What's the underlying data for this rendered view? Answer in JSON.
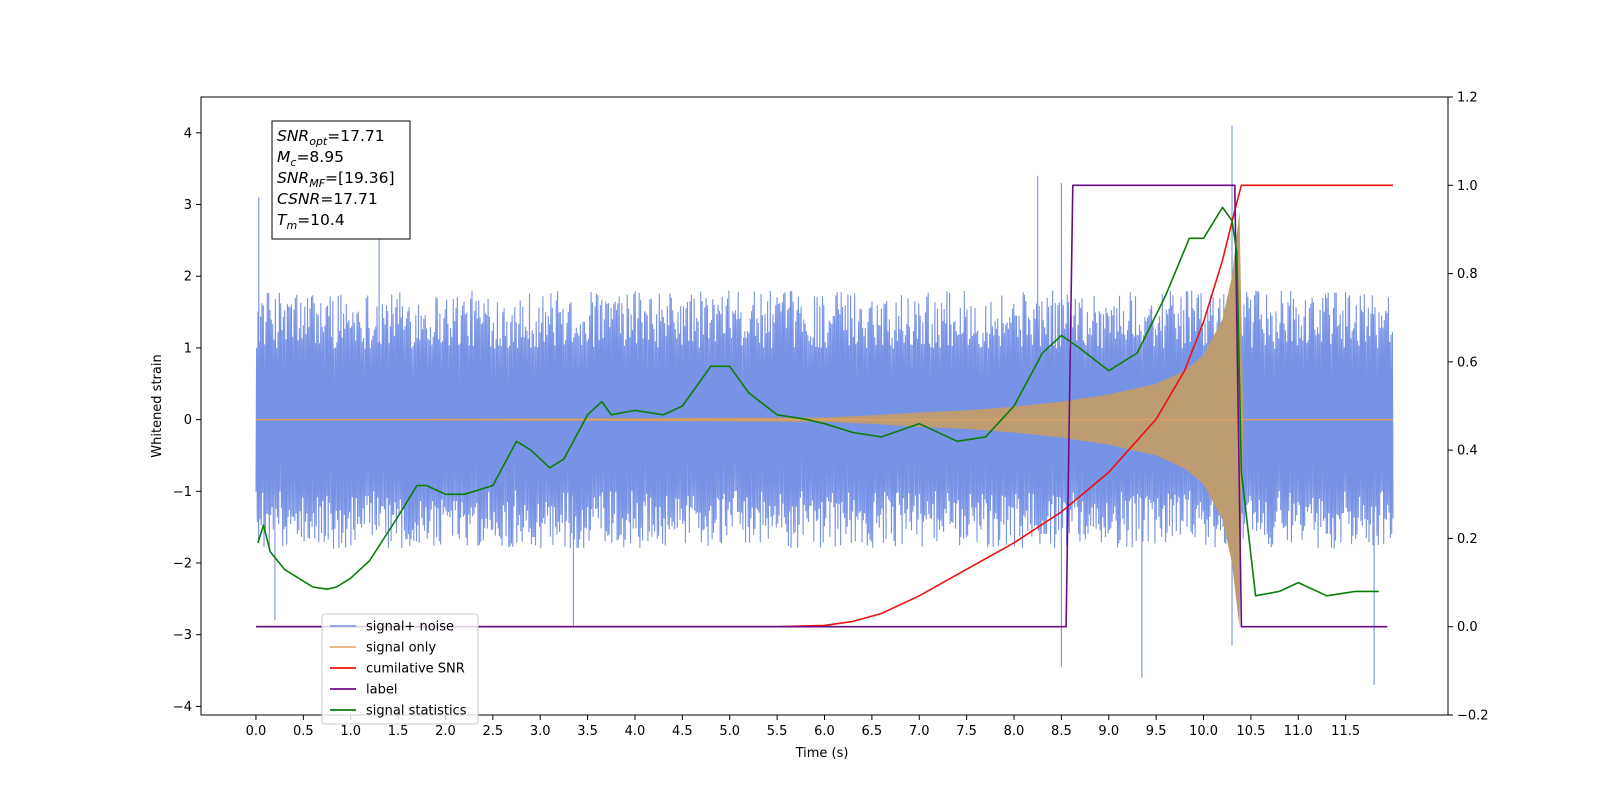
{
  "chart_data": {
    "type": "line",
    "xlabel": "Time (s)",
    "ylabel_left": "Whitened strain",
    "ylabel_right": "",
    "xlim": [
      -0.58,
      12.58
    ],
    "ylim_left": [
      -4.12,
      4.5
    ],
    "ylim_right": [
      -0.2,
      1.2
    ],
    "x_ticks": [
      "0.0",
      "0.5",
      "1.0",
      "1.5",
      "2.0",
      "2.5",
      "3.0",
      "3.5",
      "4.0",
      "4.5",
      "5.0",
      "5.5",
      "6.0",
      "6.5",
      "7.0",
      "7.5",
      "8.0",
      "8.5",
      "9.0",
      "9.5",
      "10.0",
      "10.5",
      "11.0",
      "11.5"
    ],
    "y_ticks_left": [
      "−4",
      "−3",
      "−2",
      "−1",
      "0",
      "1",
      "2",
      "3",
      "4"
    ],
    "y_ticks_right": [
      "−0.2",
      "0.0",
      "0.2",
      "0.4",
      "0.6",
      "0.8",
      "1.0",
      "1.2"
    ],
    "grid": false,
    "legend_position": "lower-left",
    "annotation": {
      "lines": [
        {
          "main": "SNR",
          "sub": "opt",
          "value": "=17.71"
        },
        {
          "main": "M",
          "sub": "c",
          "value": "=8.95"
        },
        {
          "main": "SNR",
          "sub": "MF",
          "value": "=[19.36]"
        },
        {
          "main": "CSNR",
          "sub": "",
          "value": "=17.71"
        },
        {
          "main": "T",
          "sub": "m",
          "value": "=10.4"
        }
      ]
    },
    "series": [
      {
        "name": "signal+ noise",
        "color": "#7793e6",
        "axis": "left",
        "kind": "noise_band",
        "x_range": [
          0.0,
          12.0
        ],
        "typical_amplitude": 1.8,
        "spikes": [
          {
            "x": 0.03,
            "y": 3.1
          },
          {
            "x": 0.2,
            "y": -2.8
          },
          {
            "x": 1.3,
            "y": 2.6
          },
          {
            "x": 3.35,
            "y": -2.9
          },
          {
            "x": 8.25,
            "y": 3.4
          },
          {
            "x": 8.5,
            "y": 3.3
          },
          {
            "x": 8.5,
            "y": -3.45
          },
          {
            "x": 9.35,
            "y": -3.6
          },
          {
            "x": 10.3,
            "y": 4.1
          },
          {
            "x": 10.3,
            "y": -3.15
          },
          {
            "x": 11.8,
            "y": -3.7
          }
        ]
      },
      {
        "name": "signal only",
        "color": "#e0a060",
        "axis": "left",
        "kind": "chirp_envelope",
        "envelope": {
          "x": [
            0.0,
            6.0,
            6.5,
            7.0,
            7.5,
            8.0,
            8.5,
            9.0,
            9.5,
            9.8,
            10.0,
            10.2,
            10.3,
            10.38,
            10.42,
            12.0
          ],
          "y": [
            0.0,
            0.03,
            0.06,
            0.1,
            0.13,
            0.18,
            0.25,
            0.35,
            0.5,
            0.68,
            0.9,
            1.4,
            2.0,
            2.9,
            0.0,
            0.0
          ]
        }
      },
      {
        "name": "cumilative SNR",
        "color": "#ee1111",
        "axis": "right",
        "x": [
          0.0,
          5.5,
          6.0,
          6.3,
          6.6,
          7.0,
          7.5,
          8.0,
          8.5,
          9.0,
          9.5,
          9.8,
          10.0,
          10.2,
          10.35,
          10.4,
          10.45,
          12.0
        ],
        "y": [
          0.0,
          0.0,
          0.003,
          0.012,
          0.03,
          0.07,
          0.13,
          0.19,
          0.26,
          0.35,
          0.47,
          0.58,
          0.69,
          0.83,
          0.96,
          1.0,
          1.0,
          1.0
        ]
      },
      {
        "name": "label",
        "color": "#6a0d83",
        "axis": "right",
        "x": [
          0.0,
          8.55,
          8.62,
          10.33,
          10.4,
          11.94
        ],
        "y": [
          0.0,
          0.0,
          1.0,
          1.0,
          0.0,
          0.0
        ]
      },
      {
        "name": "signal statistics",
        "color": "#0a7d0a",
        "axis": "right",
        "x": [
          0.02,
          0.08,
          0.15,
          0.3,
          0.45,
          0.6,
          0.75,
          0.85,
          1.0,
          1.2,
          1.5,
          1.7,
          1.8,
          2.0,
          2.2,
          2.5,
          2.6,
          2.75,
          2.9,
          3.1,
          3.25,
          3.4,
          3.5,
          3.65,
          3.75,
          4.0,
          4.3,
          4.5,
          4.8,
          5.0,
          5.2,
          5.5,
          5.8,
          6.0,
          6.3,
          6.6,
          7.0,
          7.4,
          7.7,
          8.0,
          8.2,
          8.3,
          8.5,
          8.7,
          9.0,
          9.3,
          9.6,
          9.85,
          10.0,
          10.2,
          10.3,
          10.35,
          10.4,
          10.55,
          10.8,
          11.0,
          11.3,
          11.6,
          11.85
        ],
        "y": [
          0.19,
          0.23,
          0.17,
          0.13,
          0.11,
          0.09,
          0.085,
          0.09,
          0.11,
          0.15,
          0.25,
          0.32,
          0.32,
          0.3,
          0.3,
          0.32,
          0.36,
          0.42,
          0.4,
          0.36,
          0.38,
          0.44,
          0.48,
          0.51,
          0.48,
          0.49,
          0.48,
          0.5,
          0.59,
          0.59,
          0.53,
          0.48,
          0.47,
          0.46,
          0.44,
          0.43,
          0.46,
          0.42,
          0.43,
          0.5,
          0.58,
          0.62,
          0.66,
          0.63,
          0.58,
          0.62,
          0.75,
          0.88,
          0.88,
          0.95,
          0.92,
          0.85,
          0.35,
          0.07,
          0.08,
          0.1,
          0.07,
          0.08,
          0.08
        ]
      }
    ]
  }
}
